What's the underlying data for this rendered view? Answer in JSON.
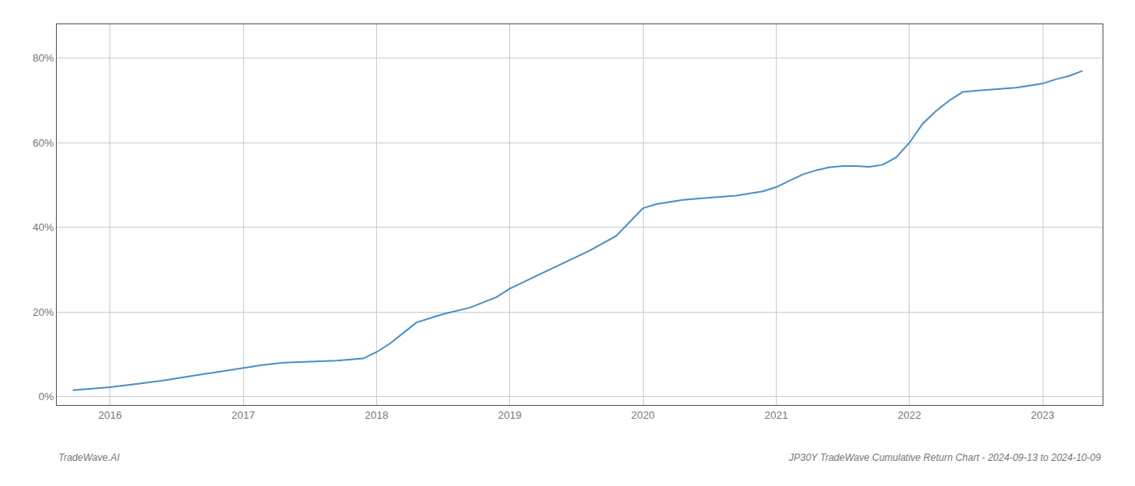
{
  "chart_data": {
    "type": "line",
    "x": [
      2015.72,
      2016.0,
      2016.2,
      2016.4,
      2016.6,
      2016.8,
      2017.0,
      2017.15,
      2017.3,
      2017.5,
      2017.7,
      2017.9,
      2018.0,
      2018.1,
      2018.2,
      2018.3,
      2018.5,
      2018.7,
      2018.9,
      2019.0,
      2019.2,
      2019.4,
      2019.6,
      2019.8,
      2020.0,
      2020.1,
      2020.2,
      2020.3,
      2020.5,
      2020.7,
      2020.9,
      2021.0,
      2021.1,
      2021.2,
      2021.3,
      2021.4,
      2021.5,
      2021.6,
      2021.7,
      2021.8,
      2021.9,
      2022.0,
      2022.1,
      2022.2,
      2022.3,
      2022.4,
      2022.5,
      2022.6,
      2022.7,
      2022.8,
      2022.9,
      2023.0,
      2023.1,
      2023.2,
      2023.3
    ],
    "values": [
      1.5,
      2.2,
      3.0,
      3.8,
      4.8,
      5.8,
      6.8,
      7.5,
      8.0,
      8.3,
      8.5,
      9.0,
      10.5,
      12.5,
      15.0,
      17.5,
      19.5,
      21.0,
      23.5,
      25.5,
      28.5,
      31.5,
      34.5,
      38.0,
      44.5,
      45.5,
      46.0,
      46.5,
      47.0,
      47.5,
      48.5,
      49.5,
      51.0,
      52.5,
      53.5,
      54.2,
      54.5,
      54.5,
      54.3,
      54.8,
      56.5,
      60.0,
      64.5,
      67.5,
      70.0,
      72.0,
      72.3,
      72.5,
      72.8,
      73.0,
      73.5,
      74.0,
      75.0,
      75.8,
      77.0
    ],
    "color": "#4a90c4",
    "xlim": [
      2015.6,
      2023.45
    ],
    "xticks": [
      2016,
      2017,
      2018,
      2019,
      2020,
      2021,
      2022,
      2023
    ],
    "ylim": [
      -2,
      88
    ],
    "yticks": [
      {
        "value": 0,
        "label": "0%"
      },
      {
        "value": 20,
        "label": "20%"
      },
      {
        "value": 40,
        "label": "40%"
      },
      {
        "value": 60,
        "label": "60%"
      },
      {
        "value": 80,
        "label": "80%"
      }
    ],
    "grid": true,
    "annotations": [
      "TradeWave.AI",
      "JP30Y TradeWave Cumulative Return Chart - 2024-09-13 to 2024-10-09"
    ]
  }
}
